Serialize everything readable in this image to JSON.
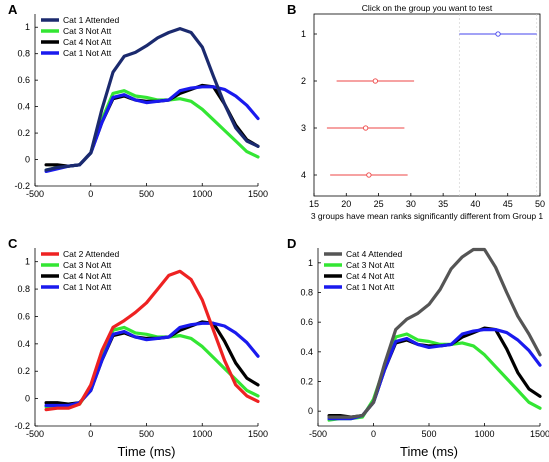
{
  "chart_data": [
    {
      "panel": "A",
      "type": "line",
      "x": [
        -400,
        -300,
        -200,
        -100,
        0,
        100,
        200,
        300,
        400,
        500,
        600,
        700,
        800,
        900,
        1000,
        1100,
        1200,
        1300,
        1400,
        1500
      ],
      "series": [
        {
          "name": "Cat 1 Attended",
          "color": "#1b2a6e",
          "values": [
            -0.08,
            -0.06,
            -0.05,
            -0.04,
            0.05,
            0.38,
            0.66,
            0.78,
            0.81,
            0.86,
            0.92,
            0.96,
            0.99,
            0.96,
            0.85,
            0.63,
            0.42,
            0.24,
            0.14,
            0.1
          ]
        },
        {
          "name": "Cat 3 Not Att",
          "color": "#33e633",
          "values": [
            -0.08,
            -0.06,
            -0.05,
            -0.04,
            0.05,
            0.3,
            0.5,
            0.52,
            0.48,
            0.47,
            0.45,
            0.45,
            0.46,
            0.44,
            0.38,
            0.3,
            0.22,
            0.14,
            0.06,
            0.02
          ]
        },
        {
          "name": "Cat 4 Not Att",
          "color": "#000000",
          "values": [
            -0.04,
            -0.04,
            -0.05,
            -0.04,
            0.05,
            0.28,
            0.46,
            0.48,
            0.45,
            0.44,
            0.44,
            0.45,
            0.5,
            0.53,
            0.56,
            0.55,
            0.42,
            0.26,
            0.15,
            0.1
          ]
        },
        {
          "name": "Cat 1 Not Att",
          "color": "#1a1aee",
          "values": [
            -0.09,
            -0.07,
            -0.05,
            -0.04,
            0.05,
            0.28,
            0.47,
            0.49,
            0.45,
            0.43,
            0.44,
            0.45,
            0.52,
            0.54,
            0.55,
            0.55,
            0.53,
            0.48,
            0.41,
            0.31
          ]
        }
      ],
      "xticks": [
        "-500",
        "0",
        "500",
        "1000",
        "1500"
      ],
      "yticks": [
        "-0.2",
        "0",
        "0.2",
        "0.4",
        "0.6",
        "0.8",
        "1"
      ],
      "xlim": [
        -500,
        1500
      ],
      "ylim": [
        -0.2,
        1.1
      ]
    },
    {
      "panel": "B",
      "type": "scatter",
      "title": "Click on the group you want to test",
      "xlabel": "3 groups have mean ranks significantly different from Group 1",
      "xticks": [
        "15",
        "20",
        "25",
        "30",
        "35",
        "40",
        "45",
        "50"
      ],
      "yticks": [
        "1",
        "2",
        "3",
        "4"
      ],
      "xlim": [
        15,
        50
      ],
      "groups": [
        {
          "group": "1",
          "mean": 43.5,
          "low": 37.5,
          "high": 49.5,
          "color": "#4444ee"
        },
        {
          "group": "2",
          "mean": 24.5,
          "low": 18.5,
          "high": 30.5,
          "color": "#ee4444"
        },
        {
          "group": "3",
          "mean": 23.0,
          "low": 17.0,
          "high": 29.0,
          "color": "#ee4444"
        },
        {
          "group": "4",
          "mean": 23.5,
          "low": 17.5,
          "high": 29.5,
          "color": "#ee4444"
        }
      ]
    },
    {
      "panel": "C",
      "type": "line",
      "x": [
        -400,
        -300,
        -200,
        -100,
        0,
        100,
        200,
        300,
        400,
        500,
        600,
        700,
        800,
        900,
        1000,
        1100,
        1200,
        1300,
        1400,
        1500
      ],
      "series": [
        {
          "name": "Cat 2 Attended",
          "color": "#ee2222",
          "values": [
            -0.08,
            -0.07,
            -0.07,
            -0.04,
            0.1,
            0.35,
            0.52,
            0.57,
            0.63,
            0.7,
            0.8,
            0.9,
            0.93,
            0.87,
            0.72,
            0.5,
            0.28,
            0.1,
            0.02,
            -0.02
          ]
        },
        {
          "name": "Cat 3 Not Att",
          "color": "#33e633",
          "values": [
            -0.06,
            -0.05,
            -0.05,
            -0.04,
            0.08,
            0.3,
            0.5,
            0.52,
            0.48,
            0.47,
            0.45,
            0.45,
            0.46,
            0.44,
            0.38,
            0.3,
            0.22,
            0.14,
            0.06,
            0.02
          ]
        },
        {
          "name": "Cat 4 Not Att",
          "color": "#000000",
          "values": [
            -0.03,
            -0.03,
            -0.04,
            -0.03,
            0.06,
            0.28,
            0.46,
            0.48,
            0.45,
            0.44,
            0.44,
            0.45,
            0.5,
            0.53,
            0.56,
            0.55,
            0.42,
            0.26,
            0.15,
            0.1
          ]
        },
        {
          "name": "Cat 1 Not Att",
          "color": "#1a1aee",
          "values": [
            -0.05,
            -0.05,
            -0.05,
            -0.03,
            0.06,
            0.28,
            0.47,
            0.49,
            0.45,
            0.43,
            0.44,
            0.45,
            0.52,
            0.54,
            0.55,
            0.55,
            0.53,
            0.48,
            0.41,
            0.31
          ]
        }
      ],
      "xticks": [
        "-500",
        "0",
        "500",
        "1000",
        "1500"
      ],
      "yticks": [
        "-0.2",
        "0",
        "0.2",
        "0.4",
        "0.6",
        "0.8",
        "1"
      ],
      "xlim": [
        -500,
        1500
      ],
      "ylim": [
        -0.2,
        1.1
      ],
      "xlabel": "Time (ms)"
    },
    {
      "panel": "D",
      "type": "line",
      "x": [
        -400,
        -300,
        -200,
        -100,
        0,
        100,
        200,
        300,
        400,
        500,
        600,
        700,
        800,
        900,
        1000,
        1100,
        1200,
        1300,
        1400,
        1500
      ],
      "series": [
        {
          "name": "Cat 4 Attended",
          "color": "#555555",
          "values": [
            -0.04,
            -0.04,
            -0.04,
            -0.03,
            0.06,
            0.32,
            0.55,
            0.62,
            0.66,
            0.72,
            0.82,
            0.96,
            1.04,
            1.09,
            1.09,
            0.97,
            0.8,
            0.64,
            0.52,
            0.38
          ]
        },
        {
          "name": "Cat 3 Not Att",
          "color": "#33e633",
          "values": [
            -0.06,
            -0.05,
            -0.05,
            -0.04,
            0.08,
            0.3,
            0.5,
            0.52,
            0.48,
            0.47,
            0.45,
            0.45,
            0.46,
            0.44,
            0.38,
            0.3,
            0.22,
            0.14,
            0.06,
            0.02
          ]
        },
        {
          "name": "Cat 4 Not Att",
          "color": "#000000",
          "values": [
            -0.03,
            -0.03,
            -0.04,
            -0.03,
            0.06,
            0.28,
            0.46,
            0.48,
            0.45,
            0.44,
            0.44,
            0.45,
            0.5,
            0.53,
            0.56,
            0.55,
            0.42,
            0.26,
            0.15,
            0.1
          ]
        },
        {
          "name": "Cat 1 Not Att",
          "color": "#1a1aee",
          "values": [
            -0.05,
            -0.05,
            -0.05,
            -0.03,
            0.06,
            0.28,
            0.47,
            0.49,
            0.45,
            0.43,
            0.44,
            0.45,
            0.52,
            0.54,
            0.55,
            0.55,
            0.53,
            0.48,
            0.41,
            0.31
          ]
        }
      ],
      "xticks": [
        "-500",
        "0",
        "500",
        "1000",
        "1500"
      ],
      "yticks": [
        "0",
        "0.2",
        "0.4",
        "0.6",
        "0.8",
        "1"
      ],
      "xlim": [
        -500,
        1500
      ],
      "ylim": [
        -0.1,
        1.1
      ],
      "xlabel": "Time (ms)"
    }
  ]
}
